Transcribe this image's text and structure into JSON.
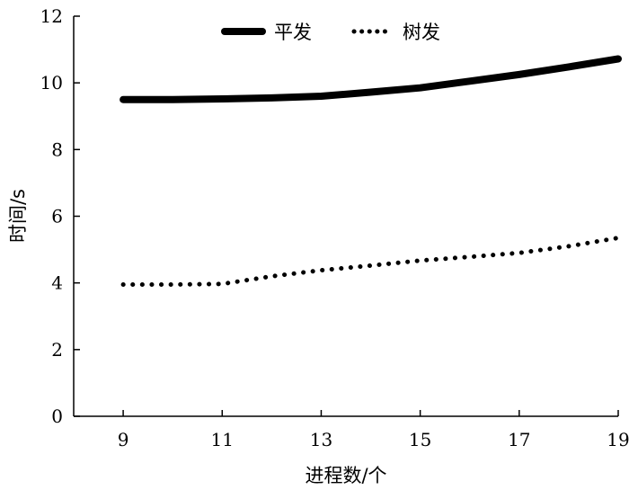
{
  "chart_data": {
    "type": "line",
    "xlabel": "进程数/个",
    "ylabel": "时间/s",
    "xlim": [
      8,
      19
    ],
    "ylim": [
      0,
      12
    ],
    "xticks": [
      9,
      11,
      13,
      15,
      17,
      19
    ],
    "yticks": [
      0,
      2,
      4,
      6,
      8,
      10,
      12
    ],
    "grid": false,
    "legend": {
      "placement": "top-center",
      "orientation": "horizontal"
    },
    "series": [
      {
        "name": "平发",
        "style": "solid",
        "color": "#000000",
        "x": [
          9,
          10,
          11,
          12,
          13,
          14,
          15,
          16,
          17,
          18,
          19
        ],
        "y": [
          9.5,
          9.5,
          9.52,
          9.55,
          9.6,
          9.72,
          9.85,
          10.05,
          10.25,
          10.48,
          10.72
        ]
      },
      {
        "name": "树发",
        "style": "dotted",
        "color": "#000000",
        "x": [
          9,
          10,
          11,
          12,
          13,
          14,
          15,
          16,
          17,
          18,
          19
        ],
        "y": [
          3.95,
          3.95,
          3.97,
          4.2,
          4.38,
          4.52,
          4.67,
          4.78,
          4.9,
          5.1,
          5.35
        ]
      }
    ]
  }
}
